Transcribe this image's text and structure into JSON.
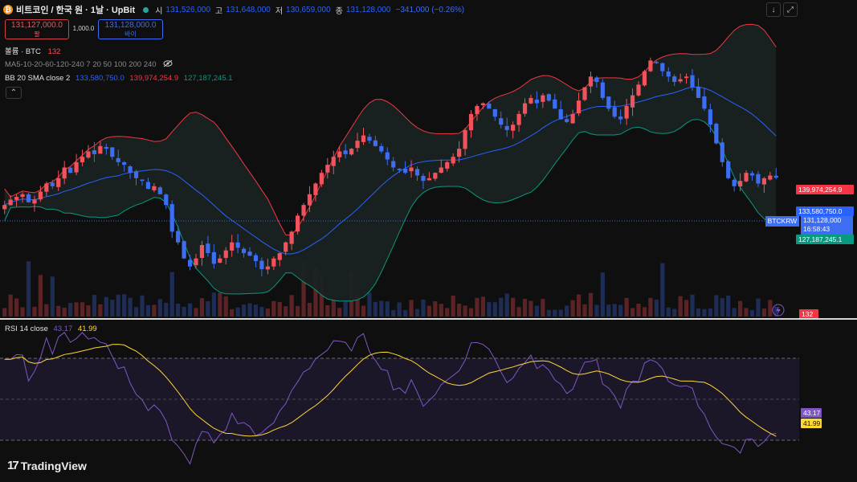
{
  "header": {
    "coin_icon_glyph": "₿",
    "title": "비트코인 / 한국 원 · 1날 · UpBit",
    "ohlc": [
      {
        "key": "시",
        "value": "131,526,000"
      },
      {
        "key": "고",
        "value": "131,648,000"
      },
      {
        "key": "저",
        "value": "130,659,000"
      },
      {
        "key": "종",
        "value": "131,128,000"
      }
    ],
    "change": "−341,000 (−0.26%)"
  },
  "trade": {
    "sell_price": "131,127,000.0",
    "sell_label": "팔",
    "quantity": "1,000.0",
    "buy_price": "131,128,000.0",
    "buy_label": "바이"
  },
  "legends": {
    "volume_label": "볼륨 · BTC",
    "volume_value": "132",
    "ma_label": "MA5-10-20-60-120-240 7 20 50 100 200 240",
    "bb_label": "BB 20 SMA close 2",
    "bb_basis": "133,580,750.0",
    "bb_upper": "139,974,254.9",
    "bb_lower": "127,187,245.1",
    "collapse_glyph": "⌃"
  },
  "toolbar": {
    "download_glyph": "↓",
    "fullscreen_glyph": "⤢"
  },
  "price_scale": {
    "upper_tag": "139,974,254.9",
    "basis_tag": "133,580,750.0",
    "symbol_tag": "BTCKRW",
    "last_price": "131,128,000",
    "countdown": "16:58:43",
    "lower_tag": "127,187,245.1",
    "volume_tag": "132"
  },
  "rsi": {
    "label": "RSI 14 close",
    "value": "43.17",
    "ma_value": "41.99"
  },
  "branding": {
    "logo_glyph": "17",
    "name": "TradingView"
  },
  "colors": {
    "up": "#f2525b",
    "down": "#3d6df2",
    "basis": "#2962ff",
    "upper_band": "#f23645",
    "lower_band": "#089981",
    "rsi_line": "#7e57c2",
    "rsi_ma": "#fdd835",
    "background": "#0f0f0f"
  },
  "chart_data": {
    "type": "candlestick",
    "symbol": "BTCKRW",
    "interval": "1D",
    "close_series": [
      126,
      127,
      127.5,
      128,
      126.5,
      127,
      128.5,
      130,
      129.5,
      131,
      133,
      132,
      134,
      135,
      136,
      135.5,
      137,
      136.5,
      135,
      134,
      133.5,
      132,
      131,
      130.5,
      129,
      129.5,
      128,
      126,
      121,
      119,
      116,
      114.5,
      116,
      118.5,
      117,
      115,
      116,
      117.5,
      119,
      118,
      117,
      116.5,
      115.5,
      114,
      114.5,
      116,
      117,
      119,
      121,
      124,
      126,
      128,
      130,
      132,
      133.5,
      135,
      136,
      135.5,
      136.5,
      138,
      139,
      138,
      137,
      136,
      134.5,
      133,
      132.5,
      132,
      133,
      131.5,
      130.5,
      131,
      132,
      133,
      134,
      135,
      136.5,
      140,
      143,
      144.5,
      145,
      144,
      142.5,
      141,
      140,
      141,
      143,
      145,
      146,
      145,
      146.5,
      145.5,
      144,
      142,
      141.5,
      143,
      145.5,
      148,
      150,
      149,
      146,
      144,
      142.5,
      142,
      144.5,
      146.5,
      148.5,
      151,
      153,
      152.5,
      151,
      150,
      149,
      149.5,
      150,
      148,
      146,
      144,
      141,
      137.5,
      134,
      131,
      129.5,
      130.5,
      132,
      131.5,
      130,
      131,
      131.5,
      131.1
    ],
    "bb_upper_latest": 139974254.9,
    "bb_basis_latest": 133580750.0,
    "bb_lower_latest": 127187245.1,
    "last_close": 131128000,
    "rsi_latest": 43.17,
    "rsi_ma_latest": 41.99,
    "rsi_levels": [
      30,
      50,
      70
    ]
  }
}
